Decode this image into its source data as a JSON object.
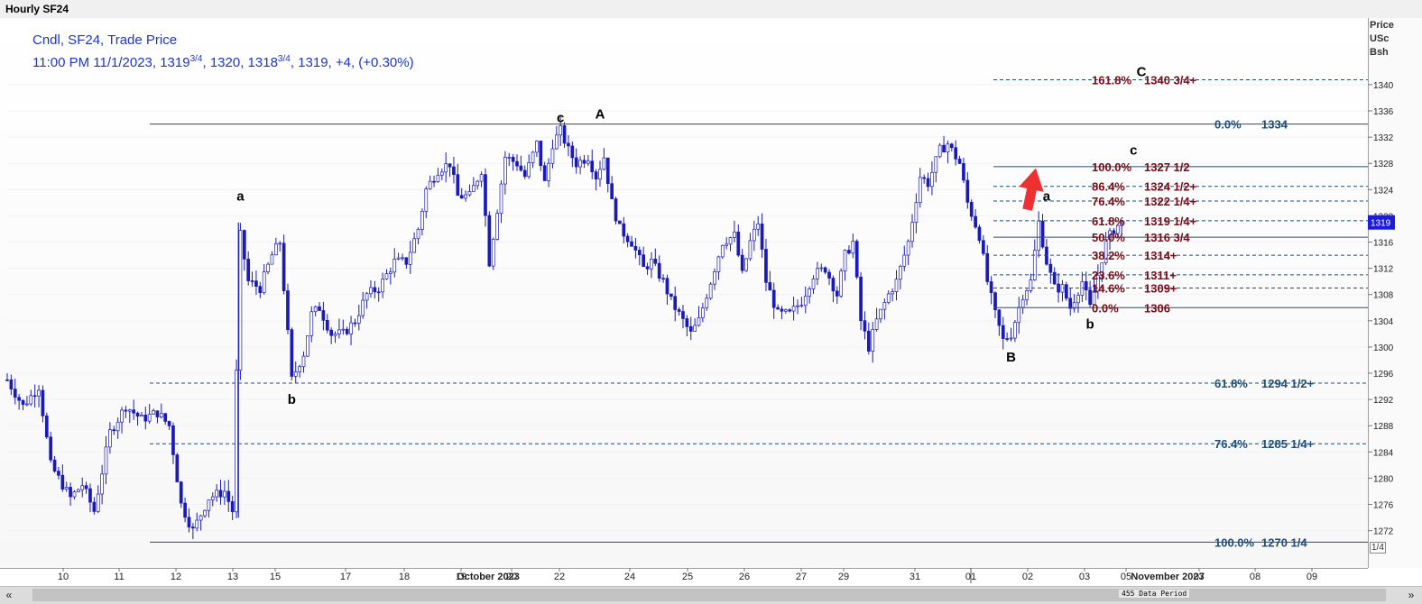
{
  "window_title": "Hourly SF24",
  "legend": {
    "line1": "Cndl, SF24, Trade Price",
    "line2_prefix": "11:00 PM 11/1/2023, 1319",
    "open_frac": "3/4",
    "line2_mid": ", 1320, 1318",
    "low_frac": "3/4",
    "line2_suffix": ", 1319, +4, (+0.30%)"
  },
  "price_axis_label": [
    "Price",
    "USc",
    "Bsh"
  ],
  "last_price_marker": "1319",
  "scale_button": "1/4",
  "data_period_label": "455 Data Period",
  "scroll": {
    "left_icon": "«",
    "right_icon": "»"
  },
  "colors": {
    "candle_up_body": "#ffffff",
    "candle_down_body": "#1a1ab8",
    "candle_wick": "#1a1ab8",
    "fib_blue": "#1f4e79",
    "fib_dark_red": "#7b0a14",
    "marker": "#1a1ae0",
    "arrow": "#ef3030",
    "legend_text": "#1c36c8"
  },
  "chart_data": {
    "type": "candlestick",
    "title": "Hourly SF24",
    "subtitle": "Cndl, SF24, Trade Price",
    "ylabel": "Price USc Bsh",
    "ylim": [
      1267,
      1348
    ],
    "y_ticks": [
      1272,
      1276,
      1280,
      1284,
      1288,
      1292,
      1296,
      1300,
      1304,
      1308,
      1312,
      1316,
      1320,
      1324,
      1328,
      1332,
      1336,
      1340
    ],
    "x_ticks": [
      "10",
      "11",
      "12",
      "13",
      "15",
      "17",
      "18",
      "19",
      "20",
      "22",
      "24",
      "25",
      "26",
      "27",
      "29",
      "31",
      "01",
      "02",
      "03",
      "05",
      "07",
      "08",
      "09"
    ],
    "x_month_labels": [
      "October 2023",
      "November 2023"
    ],
    "price_path": [
      [
        0,
        1295
      ],
      [
        4,
        1291
      ],
      [
        8,
        1294
      ],
      [
        11,
        1282
      ],
      [
        16,
        1277
      ],
      [
        19,
        1279
      ],
      [
        22,
        1275
      ],
      [
        26,
        1287
      ],
      [
        30,
        1291
      ],
      [
        34,
        1289
      ],
      [
        38,
        1290
      ],
      [
        41,
        1288
      ],
      [
        44,
        1276
      ],
      [
        47,
        1272
      ],
      [
        51,
        1277
      ],
      [
        55,
        1278
      ],
      [
        57,
        1275
      ],
      [
        59,
        1317
      ],
      [
        61,
        1310
      ],
      [
        64,
        1309
      ],
      [
        67,
        1314
      ],
      [
        69,
        1316
      ],
      [
        71,
        1302
      ],
      [
        72,
        1295
      ],
      [
        75,
        1299
      ],
      [
        77,
        1305
      ],
      [
        79,
        1306
      ],
      [
        82,
        1302
      ],
      [
        85,
        1302
      ],
      [
        88,
        1304
      ],
      [
        91,
        1308
      ],
      [
        94,
        1309
      ],
      [
        98,
        1313
      ],
      [
        101,
        1313
      ],
      [
        104,
        1318
      ],
      [
        106,
        1324
      ],
      [
        109,
        1327
      ],
      [
        112,
        1328
      ],
      [
        114,
        1323
      ],
      [
        117,
        1323
      ],
      [
        120,
        1327
      ],
      [
        122,
        1313
      ],
      [
        124,
        1321
      ],
      [
        126,
        1329
      ],
      [
        129,
        1328
      ],
      [
        131,
        1326
      ],
      [
        134,
        1331
      ],
      [
        136,
        1325
      ],
      [
        138,
        1331
      ],
      [
        140,
        1333
      ],
      [
        142,
        1330
      ],
      [
        144,
        1328
      ],
      [
        147,
        1329
      ],
      [
        149,
        1326
      ],
      [
        151,
        1329
      ],
      [
        153,
        1322
      ],
      [
        155,
        1318
      ],
      [
        158,
        1316
      ],
      [
        161,
        1312
      ],
      [
        163,
        1313
      ],
      [
        166,
        1310
      ],
      [
        168,
        1307
      ],
      [
        171,
        1304
      ],
      [
        173,
        1302
      ],
      [
        175,
        1304
      ],
      [
        178,
        1310
      ],
      [
        181,
        1316
      ],
      [
        184,
        1317
      ],
      [
        186,
        1311
      ],
      [
        188,
        1316
      ],
      [
        190,
        1319
      ],
      [
        192,
        1310
      ],
      [
        195,
        1305
      ],
      [
        198,
        1305
      ],
      [
        201,
        1307
      ],
      [
        204,
        1311
      ],
      [
        207,
        1312
      ],
      [
        210,
        1308
      ],
      [
        212,
        1314
      ],
      [
        214,
        1316
      ],
      [
        216,
        1304
      ],
      [
        218,
        1300
      ],
      [
        220,
        1304
      ],
      [
        223,
        1308
      ],
      [
        225,
        1310
      ],
      [
        228,
        1316
      ],
      [
        231,
        1326
      ],
      [
        233,
        1325
      ],
      [
        236,
        1330
      ],
      [
        238,
        1331
      ],
      [
        241,
        1328
      ],
      [
        243,
        1322
      ],
      [
        246,
        1317
      ],
      [
        248,
        1310
      ],
      [
        250,
        1305
      ],
      [
        252,
        1301
      ],
      [
        254,
        1302
      ],
      [
        257,
        1308
      ],
      [
        259,
        1310
      ],
      [
        261,
        1319
      ],
      [
        263,
        1313
      ],
      [
        265,
        1309
      ],
      [
        267,
        1309
      ],
      [
        269,
        1306
      ],
      [
        272,
        1310
      ],
      [
        274,
        1306
      ],
      [
        276,
        1311
      ],
      [
        278,
        1316
      ],
      [
        280,
        1318
      ],
      [
        282,
        1319
      ]
    ],
    "fib_levels": [
      {
        "label": "0.0%",
        "value": 1334,
        "text": "1334",
        "style": "solid",
        "color": "blue"
      },
      {
        "label": "61.8%",
        "value": 1294.5,
        "text": "1294 1/2+",
        "style": "dashed",
        "color": "blue"
      },
      {
        "label": "76.4%",
        "value": 1285.25,
        "text": "1285 1/4+",
        "style": "dashed",
        "color": "blue"
      },
      {
        "label": "100.0%",
        "value": 1270.25,
        "text": "1270 1/4",
        "style": "solid",
        "color": "blue"
      },
      {
        "label": "161.8%",
        "value": 1340.75,
        "text": "1340 3/4+",
        "style": "dashed",
        "color": "red"
      },
      {
        "label": "100.0%",
        "value": 1327.5,
        "text": "1327 1/2",
        "style": "solid",
        "color": "red"
      },
      {
        "label": "86.4%",
        "value": 1324.5,
        "text": "1324 1/2+",
        "style": "dashed",
        "color": "red"
      },
      {
        "label": "76.4%",
        "value": 1322.25,
        "text": "1322 1/4+",
        "style": "dashed",
        "color": "red"
      },
      {
        "label": "61.8%",
        "value": 1319.25,
        "text": "1319 1/4+",
        "style": "dashed",
        "color": "red"
      },
      {
        "label": "50.0%",
        "value": 1316.75,
        "text": "1316 3/4",
        "style": "solid",
        "color": "red"
      },
      {
        "label": "38.2%",
        "value": 1314,
        "text": "1314+",
        "style": "dashed",
        "color": "red"
      },
      {
        "label": "23.6%",
        "value": 1311,
        "text": "1311+",
        "style": "dashed",
        "color": "red"
      },
      {
        "label": "14.6%",
        "value": 1309,
        "text": "1309+",
        "style": "dashed",
        "color": "red"
      },
      {
        "label": "0.0%",
        "value": 1306,
        "text": "1306",
        "style": "solid",
        "color": "red"
      }
    ],
    "wave_labels": [
      {
        "text": "a",
        "bar": 59,
        "price": 1323
      },
      {
        "text": "b",
        "bar": 72,
        "price": 1292
      },
      {
        "text": "c",
        "bar": 140,
        "price": 1335
      },
      {
        "text": "A",
        "bar": 150,
        "price": 1335.5
      },
      {
        "text": "a",
        "bar": 263,
        "price": 1323
      },
      {
        "text": "b",
        "bar": 274,
        "price": 1303.5
      },
      {
        "text": "B",
        "bar": 254,
        "price": 1298.5
      },
      {
        "text": "c",
        "bar": 285,
        "price": 1330
      },
      {
        "text": "C",
        "bar": 287,
        "price": 1342
      }
    ]
  }
}
